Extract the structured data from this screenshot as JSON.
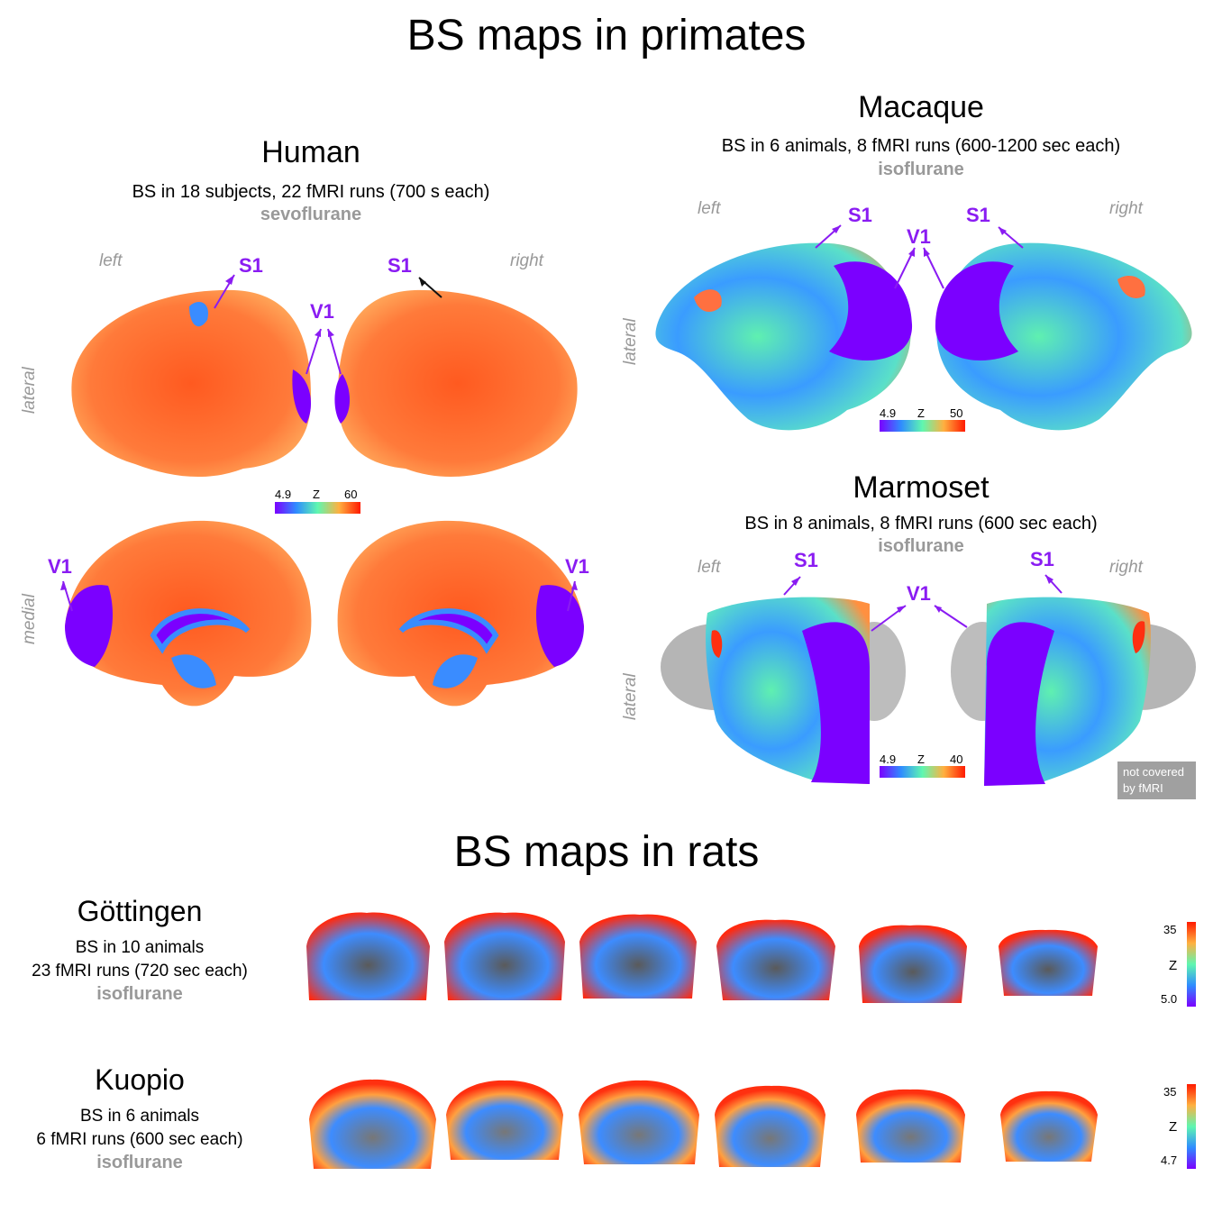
{
  "title_primates": "BS maps in primates",
  "title_rats": "BS maps in rats",
  "human": {
    "title": "Human",
    "subtitle": "BS in 18 subjects, 22 fMRI runs (700 s each)",
    "anesthetic": "sevoflurane",
    "left": "left",
    "right": "right",
    "lateral": "lateral",
    "medial": "medial",
    "labels": {
      "s1": "S1",
      "v1": "V1"
    },
    "colorbar": {
      "min": "4.9",
      "mid": "Z",
      "max": "60"
    }
  },
  "macaque": {
    "title": "Macaque",
    "subtitle": "BS in 6 animals, 8 fMRI runs (600-1200 sec each)",
    "anesthetic": "isoflurane",
    "left": "left",
    "right": "right",
    "lateral": "lateral",
    "labels": {
      "s1": "S1",
      "v1": "V1"
    },
    "colorbar": {
      "min": "4.9",
      "mid": "Z",
      "max": "50"
    }
  },
  "marmoset": {
    "title": "Marmoset",
    "subtitle": "BS in 8 animals, 8 fMRI runs (600 sec each)",
    "anesthetic": "isoflurane",
    "left": "left",
    "right": "right",
    "lateral": "lateral",
    "labels": {
      "s1": "S1",
      "v1": "V1"
    },
    "colorbar": {
      "min": "4.9",
      "mid": "Z",
      "max": "40"
    },
    "note_line1": "not covered",
    "note_line2": "by fMRI"
  },
  "gottingen": {
    "title": "Göttingen",
    "line1": "BS in 10 animals",
    "line2": "23 fMRI runs (720 sec each)",
    "anesthetic": "isoflurane",
    "colorbar": {
      "max": "35",
      "mid": "Z",
      "min": "5.0"
    }
  },
  "kuopio": {
    "title": "Kuopio",
    "line1": "BS in 6 animals",
    "line2": "6 fMRI runs (600 sec each)",
    "anesthetic": "isoflurane",
    "colorbar": {
      "max": "35",
      "mid": "Z",
      "min": "4.7"
    }
  },
  "colors": {
    "label_purple": "#8a1cf2",
    "muted_gray": "#999999"
  }
}
